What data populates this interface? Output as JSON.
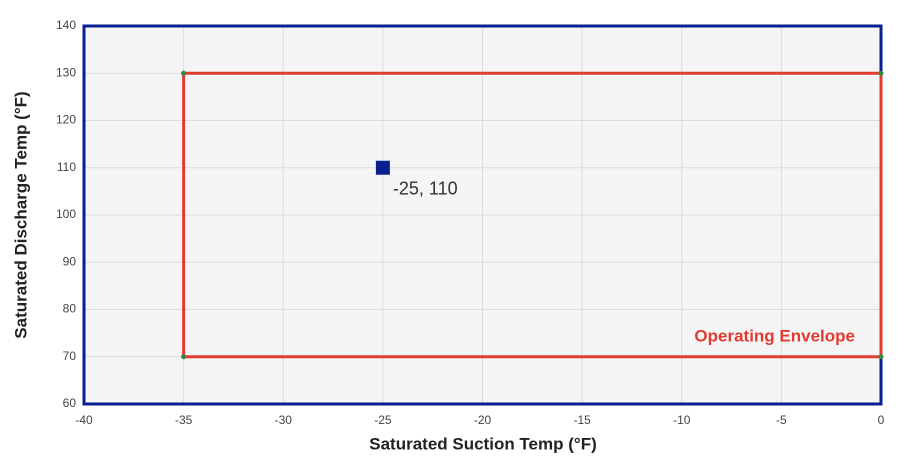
{
  "chart_data": {
    "type": "scatter",
    "x_label": "Saturated Suction Temp (°F)",
    "y_label": "Saturated Discharge Temp (°F)",
    "xlim": [
      -40,
      0
    ],
    "ylim": [
      60,
      140
    ],
    "xticks": [
      -40,
      -35,
      -30,
      -25,
      -20,
      -15,
      -10,
      -5,
      0
    ],
    "yticks": [
      60,
      70,
      80,
      90,
      100,
      110,
      120,
      130,
      140
    ],
    "grid": true,
    "series": [
      {
        "name": "Operating Envelope",
        "color": "#e03c31",
        "corner_color": "#2e8b3e",
        "x": [
          -35,
          0,
          0,
          -35
        ],
        "values": [
          70,
          70,
          130,
          130
        ]
      },
      {
        "color": "#0a1f8f",
        "x": [
          -25
        ],
        "values": [
          110
        ],
        "value_labels": [
          "-25, 110"
        ]
      }
    ]
  }
}
